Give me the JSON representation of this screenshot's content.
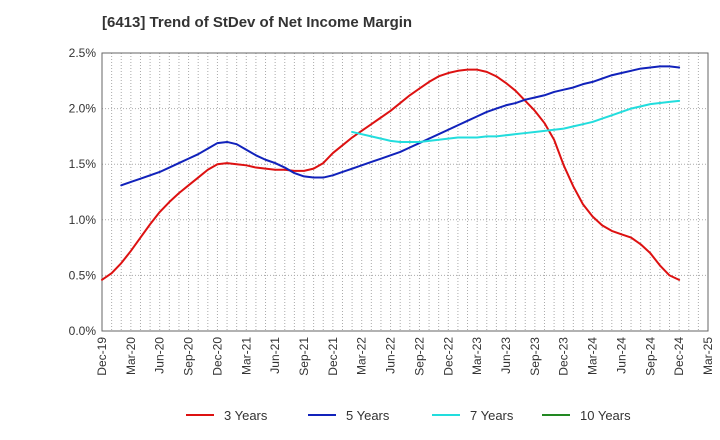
{
  "chart_data": {
    "type": "line",
    "title": "[6413]  Trend of StDev of Net Income Margin",
    "xlabel": "",
    "ylabel": "",
    "x_ticks": [
      "Dec-19",
      "Mar-20",
      "Jun-20",
      "Sep-20",
      "Dec-20",
      "Mar-21",
      "Jun-21",
      "Sep-21",
      "Dec-21",
      "Mar-22",
      "Jun-22",
      "Sep-22",
      "Dec-22",
      "Mar-23",
      "Jun-23",
      "Sep-23",
      "Dec-23",
      "Mar-24",
      "Jun-24",
      "Sep-24",
      "Dec-24",
      "Mar-25"
    ],
    "y_ticks": [
      "0.0%",
      "0.5%",
      "1.0%",
      "1.5%",
      "2.0%",
      "2.5%"
    ],
    "ylim": [
      0,
      2.5
    ],
    "y_unit": "%",
    "grid": true,
    "legend_position": "bottom",
    "series": [
      {
        "name": "3 Years",
        "color": "#dd1111",
        "points": [
          [
            "Dec-19",
            0.46
          ],
          [
            "Jan-20",
            0.52
          ],
          [
            "Feb-20",
            0.61
          ],
          [
            "Mar-20",
            0.72
          ],
          [
            "Apr-20",
            0.84
          ],
          [
            "May-20",
            0.96
          ],
          [
            "Jun-20",
            1.07
          ],
          [
            "Jul-20",
            1.16
          ],
          [
            "Aug-20",
            1.24
          ],
          [
            "Sep-20",
            1.31
          ],
          [
            "Oct-20",
            1.38
          ],
          [
            "Nov-20",
            1.45
          ],
          [
            "Dec-20",
            1.5
          ],
          [
            "Jan-21",
            1.51
          ],
          [
            "Feb-21",
            1.5
          ],
          [
            "Mar-21",
            1.49
          ],
          [
            "Apr-21",
            1.47
          ],
          [
            "May-21",
            1.46
          ],
          [
            "Jun-21",
            1.45
          ],
          [
            "Jul-21",
            1.45
          ],
          [
            "Aug-21",
            1.44
          ],
          [
            "Sep-21",
            1.44
          ],
          [
            "Oct-21",
            1.46
          ],
          [
            "Nov-21",
            1.51
          ],
          [
            "Dec-21",
            1.6
          ],
          [
            "Jan-22",
            1.67
          ],
          [
            "Feb-22",
            1.74
          ],
          [
            "Mar-22",
            1.8
          ],
          [
            "Apr-22",
            1.86
          ],
          [
            "May-22",
            1.92
          ],
          [
            "Jun-22",
            1.98
          ],
          [
            "Jul-22",
            2.05
          ],
          [
            "Aug-22",
            2.12
          ],
          [
            "Sep-22",
            2.18
          ],
          [
            "Oct-22",
            2.24
          ],
          [
            "Nov-22",
            2.29
          ],
          [
            "Dec-22",
            2.32
          ],
          [
            "Jan-23",
            2.34
          ],
          [
            "Feb-23",
            2.35
          ],
          [
            "Mar-23",
            2.35
          ],
          [
            "Apr-23",
            2.33
          ],
          [
            "May-23",
            2.29
          ],
          [
            "Jun-23",
            2.23
          ],
          [
            "Jul-23",
            2.16
          ],
          [
            "Aug-23",
            2.07
          ],
          [
            "Sep-23",
            1.98
          ],
          [
            "Oct-23",
            1.87
          ],
          [
            "Nov-23",
            1.72
          ],
          [
            "Dec-23",
            1.49
          ],
          [
            "Jan-24",
            1.3
          ],
          [
            "Feb-24",
            1.14
          ],
          [
            "Mar-24",
            1.03
          ],
          [
            "Apr-24",
            0.95
          ],
          [
            "May-24",
            0.9
          ],
          [
            "Jun-24",
            0.87
          ],
          [
            "Jul-24",
            0.84
          ],
          [
            "Aug-24",
            0.78
          ],
          [
            "Sep-24",
            0.7
          ],
          [
            "Oct-24",
            0.59
          ],
          [
            "Nov-24",
            0.5
          ],
          [
            "Dec-24",
            0.46
          ]
        ]
      },
      {
        "name": "5 Years",
        "color": "#1122bb",
        "points": [
          [
            "Feb-20",
            1.31
          ],
          [
            "Mar-20",
            1.34
          ],
          [
            "Apr-20",
            1.37
          ],
          [
            "May-20",
            1.4
          ],
          [
            "Jun-20",
            1.43
          ],
          [
            "Jul-20",
            1.47
          ],
          [
            "Aug-20",
            1.51
          ],
          [
            "Sep-20",
            1.55
          ],
          [
            "Oct-20",
            1.59
          ],
          [
            "Nov-20",
            1.64
          ],
          [
            "Dec-20",
            1.69
          ],
          [
            "Jan-21",
            1.7
          ],
          [
            "Feb-21",
            1.68
          ],
          [
            "Mar-21",
            1.63
          ],
          [
            "Apr-21",
            1.58
          ],
          [
            "May-21",
            1.54
          ],
          [
            "Jun-21",
            1.51
          ],
          [
            "Jul-21",
            1.47
          ],
          [
            "Aug-21",
            1.42
          ],
          [
            "Sep-21",
            1.39
          ],
          [
            "Oct-21",
            1.38
          ],
          [
            "Nov-21",
            1.38
          ],
          [
            "Dec-21",
            1.4
          ],
          [
            "Jan-22",
            1.43
          ],
          [
            "Feb-22",
            1.46
          ],
          [
            "Mar-22",
            1.49
          ],
          [
            "Apr-22",
            1.52
          ],
          [
            "May-22",
            1.55
          ],
          [
            "Jun-22",
            1.58
          ],
          [
            "Jul-22",
            1.61
          ],
          [
            "Aug-22",
            1.65
          ],
          [
            "Sep-22",
            1.69
          ],
          [
            "Oct-22",
            1.73
          ],
          [
            "Nov-22",
            1.77
          ],
          [
            "Dec-22",
            1.81
          ],
          [
            "Jan-23",
            1.85
          ],
          [
            "Feb-23",
            1.89
          ],
          [
            "Mar-23",
            1.93
          ],
          [
            "Apr-23",
            1.97
          ],
          [
            "May-23",
            2.0
          ],
          [
            "Jun-23",
            2.03
          ],
          [
            "Jul-23",
            2.05
          ],
          [
            "Aug-23",
            2.08
          ],
          [
            "Sep-23",
            2.1
          ],
          [
            "Oct-23",
            2.12
          ],
          [
            "Nov-23",
            2.15
          ],
          [
            "Dec-23",
            2.17
          ],
          [
            "Jan-24",
            2.19
          ],
          [
            "Feb-24",
            2.22
          ],
          [
            "Mar-24",
            2.24
          ],
          [
            "Apr-24",
            2.27
          ],
          [
            "May-24",
            2.3
          ],
          [
            "Jun-24",
            2.32
          ],
          [
            "Jul-24",
            2.34
          ],
          [
            "Aug-24",
            2.36
          ],
          [
            "Sep-24",
            2.37
          ],
          [
            "Oct-24",
            2.38
          ],
          [
            "Nov-24",
            2.38
          ],
          [
            "Dec-24",
            2.37
          ]
        ]
      },
      {
        "name": "7 Years",
        "color": "#22dddd",
        "points": [
          [
            "Feb-22",
            1.79
          ],
          [
            "Mar-22",
            1.77
          ],
          [
            "Apr-22",
            1.75
          ],
          [
            "May-22",
            1.73
          ],
          [
            "Jun-22",
            1.71
          ],
          [
            "Jul-22",
            1.7
          ],
          [
            "Aug-22",
            1.7
          ],
          [
            "Sep-22",
            1.7
          ],
          [
            "Oct-22",
            1.71
          ],
          [
            "Nov-22",
            1.72
          ],
          [
            "Dec-22",
            1.73
          ],
          [
            "Jan-23",
            1.74
          ],
          [
            "Feb-23",
            1.74
          ],
          [
            "Mar-23",
            1.74
          ],
          [
            "Apr-23",
            1.75
          ],
          [
            "May-23",
            1.75
          ],
          [
            "Jun-23",
            1.76
          ],
          [
            "Jul-23",
            1.77
          ],
          [
            "Aug-23",
            1.78
          ],
          [
            "Sep-23",
            1.79
          ],
          [
            "Oct-23",
            1.8
          ],
          [
            "Nov-23",
            1.81
          ],
          [
            "Dec-23",
            1.82
          ],
          [
            "Jan-24",
            1.84
          ],
          [
            "Feb-24",
            1.86
          ],
          [
            "Mar-24",
            1.88
          ],
          [
            "Apr-24",
            1.91
          ],
          [
            "May-24",
            1.94
          ],
          [
            "Jun-24",
            1.97
          ],
          [
            "Jul-24",
            2.0
          ],
          [
            "Aug-24",
            2.02
          ],
          [
            "Sep-24",
            2.04
          ],
          [
            "Oct-24",
            2.05
          ],
          [
            "Nov-24",
            2.06
          ],
          [
            "Dec-24",
            2.07
          ]
        ]
      },
      {
        "name": "10 Years",
        "color": "#228822",
        "points": []
      }
    ]
  }
}
